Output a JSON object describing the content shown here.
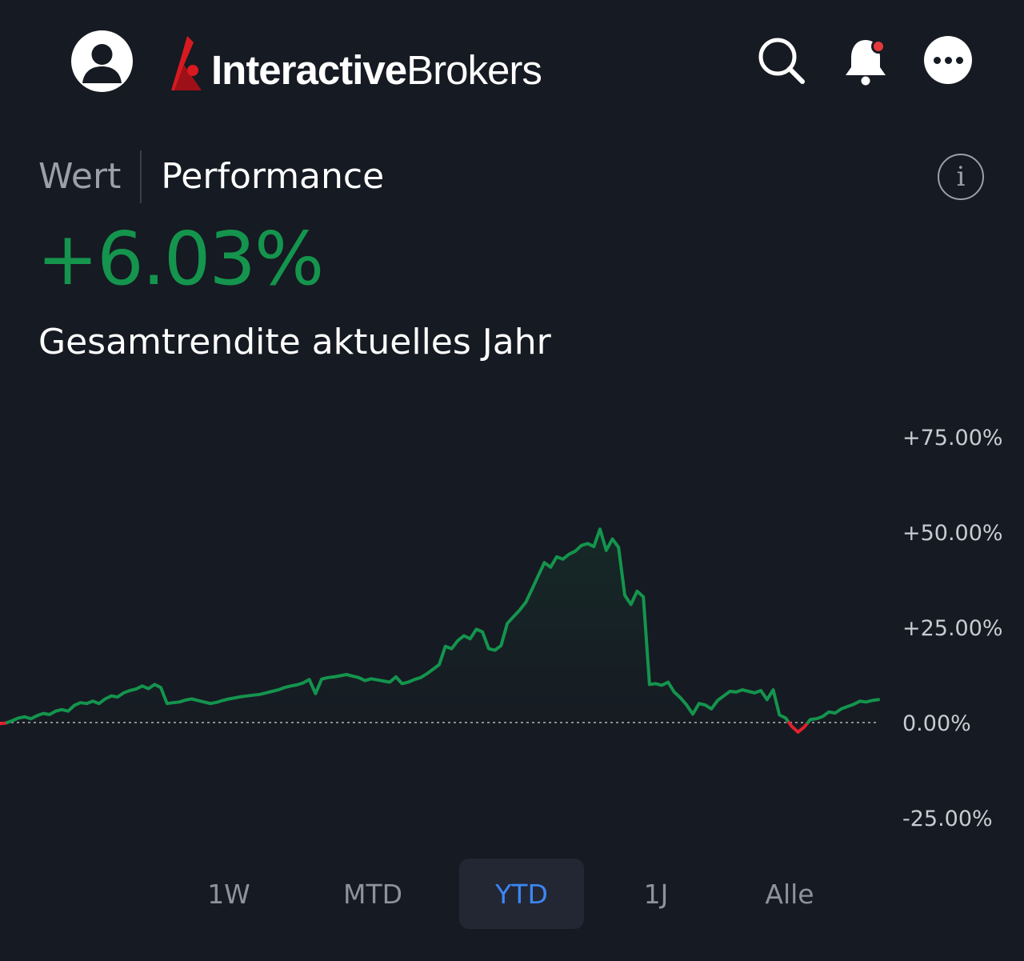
{
  "header": {
    "logo_bold": "Interactive",
    "logo_light": "Brokers",
    "icons": [
      "user-avatar-icon",
      "search-icon",
      "bell-icon",
      "more-icon"
    ],
    "has_notification": true,
    "notification_dot_color": "#e5393b"
  },
  "tabs": {
    "value_label": "Wert",
    "performance_label": "Performance",
    "active": "Performance"
  },
  "summary": {
    "return_value": "+6.03%",
    "return_color": "#14944d",
    "description": "Gesamtrendite aktuelles Jahr"
  },
  "chart_data": {
    "type": "line",
    "title": "",
    "xlabel": "",
    "ylabel": "",
    "y_ticks": [
      "+75.00%",
      "+50.00%",
      "+25.00%",
      "0.00%",
      "-25.00%"
    ],
    "ylim": [
      -25,
      75
    ],
    "baseline": 0,
    "positive_color": "#14944d",
    "negative_color": "#e0212e",
    "series": [
      {
        "values": [
          -0.3,
          -0.1,
          0.5,
          1.2,
          1.5,
          1.0,
          1.8,
          2.4,
          2.1,
          3.0,
          3.4,
          3.0,
          4.5,
          5.2,
          5.0,
          5.6,
          5.0,
          6.2,
          7.0,
          6.7,
          7.8,
          8.4,
          8.8,
          9.6,
          8.9,
          10.0,
          9.2,
          5.0,
          5.2,
          5.4,
          5.9,
          6.2,
          5.8,
          5.4,
          5.0,
          5.3,
          5.8,
          6.2,
          6.5,
          6.8,
          7.0,
          7.2,
          7.4,
          7.8,
          8.2,
          8.6,
          9.2,
          9.6,
          9.9,
          10.4,
          11.3,
          7.6,
          11.4,
          11.8,
          12.0,
          12.3,
          12.6,
          12.2,
          11.8,
          11.0,
          11.5,
          11.2,
          10.9,
          10.6,
          12.0,
          10.2,
          10.6,
          11.3,
          11.8,
          12.8,
          14.0,
          15.2,
          20.0,
          19.4,
          21.5,
          22.8,
          22.0,
          24.5,
          23.8,
          19.4,
          19.0,
          20.2,
          26.0,
          27.8,
          29.5,
          31.6,
          35.0,
          38.5,
          42.0,
          40.8,
          43.5,
          42.9,
          44.2,
          45.0,
          46.5,
          47.0,
          46.2,
          50.8,
          45.2,
          48.2,
          46.0,
          33.4,
          31.0,
          34.5,
          33.0,
          10.0,
          10.2,
          9.8,
          10.6,
          8.0,
          6.5,
          4.6,
          2.2,
          5.0,
          4.6,
          3.6,
          5.8,
          7.0,
          8.2,
          8.0,
          8.6,
          8.2,
          7.8,
          8.4,
          6.0,
          8.6,
          2.0,
          1.2,
          -1.0,
          -2.5,
          -1.2,
          0.8,
          1.0,
          1.6,
          2.8,
          2.5,
          3.6,
          4.2,
          4.8,
          5.6,
          5.4,
          5.8,
          6.03
        ]
      }
    ],
    "grid": false,
    "legend": "none"
  },
  "ranges": [
    {
      "label": "1W"
    },
    {
      "label": "MTD"
    },
    {
      "label": "YTD",
      "active": true
    },
    {
      "label": "1J"
    },
    {
      "label": "Alle"
    }
  ]
}
